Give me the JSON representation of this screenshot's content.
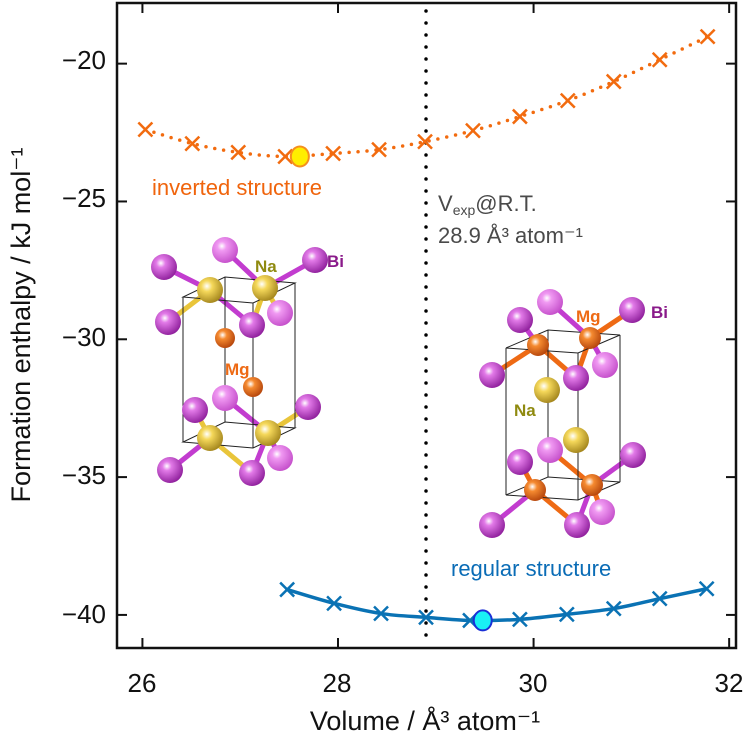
{
  "chart_data": {
    "type": "line",
    "title": "",
    "xlabel": "Volume / Å³ atom⁻¹",
    "ylabel": "Formation enthalpy / kJ mol⁻¹",
    "xlim": [
      25.74,
      32.07
    ],
    "ylim": [
      -41.2,
      -17.8
    ],
    "xticks": [
      26,
      28,
      30,
      32
    ],
    "yticks": [
      -20,
      -25,
      -30,
      -35,
      -40
    ],
    "xtick_labels": [
      "26",
      "28",
      "30",
      "32"
    ],
    "ytick_labels": [
      "−20",
      "−25",
      "−30",
      "−35",
      "−40"
    ],
    "grid": false,
    "series": [
      {
        "name": "inverted structure",
        "color": "#f26b0f",
        "line_style": "dotted",
        "marker": "x",
        "x": [
          26.03,
          26.51,
          26.98,
          27.46,
          27.95,
          28.42,
          28.89,
          29.38,
          29.86,
          30.35,
          30.82,
          31.29,
          31.78
        ],
        "y": [
          -22.39,
          -22.9,
          -23.22,
          -23.37,
          -23.26,
          -23.12,
          -22.83,
          -22.43,
          -21.92,
          -21.34,
          -20.65,
          -19.86,
          -19.02
        ],
        "minimum": {
          "x": 27.61,
          "y": -23.37,
          "fill": "#ffee00",
          "stroke": "#f5901e"
        }
      },
      {
        "name": "regular structure",
        "color": "#0a72b4",
        "line_style": "solid",
        "marker": "x",
        "x": [
          27.48,
          27.96,
          28.44,
          28.9,
          29.35,
          29.86,
          30.34,
          30.82,
          31.29,
          31.77
        ],
        "y": [
          -39.08,
          -39.58,
          -39.95,
          -40.09,
          -40.2,
          -40.16,
          -39.98,
          -39.77,
          -39.41,
          -39.05
        ],
        "minimum": {
          "x": 29.48,
          "y": -40.2,
          "fill": "#19f0f5",
          "stroke": "#1a2fd6"
        }
      }
    ],
    "vline": {
      "x": 28.9,
      "color": "#000000",
      "style": "dotted"
    },
    "annotations": {
      "inverted_label": {
        "text": "inverted structure",
        "color": "#f0640c"
      },
      "regular_label": {
        "text": "regular structure",
        "color": "#0a6cb6"
      },
      "vexp_line1_main": "V",
      "vexp_line1_sub": "exp",
      "vexp_line1_rest": "@R.T.",
      "vexp_line2": "28.9 Å³ atom⁻¹",
      "vexp_color": "#4a4a4a"
    },
    "insets": [
      {
        "name": "inverted-structure-model",
        "labels": {
          "na": "Na",
          "mg": "Mg",
          "bi": "Bi"
        }
      },
      {
        "name": "regular-structure-model",
        "labels": {
          "na": "Na",
          "mg": "Mg",
          "bi": "Bi"
        }
      }
    ],
    "atom_colors": {
      "bi": "#c23ccf",
      "bi_light": "#e070e6",
      "na": "#e9c53a",
      "mg": "#ee6a14",
      "na_label": "#8f8a10",
      "mg_label": "#ee6a14",
      "bi_label": "#8a1a8a"
    }
  }
}
